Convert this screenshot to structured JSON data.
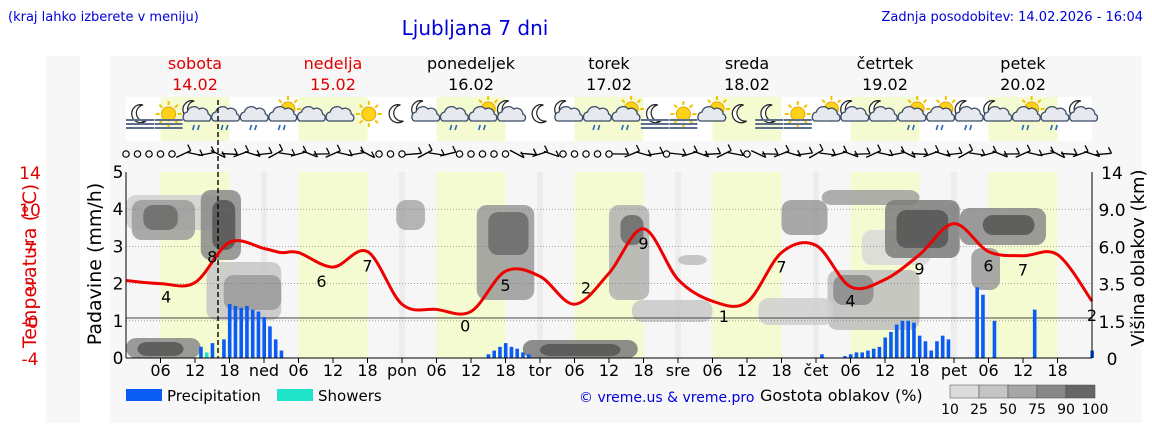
{
  "header": {
    "left_note": "(kraj lahko izberete v meniju)",
    "title": "Ljubljana 7 dni",
    "updated": "Zadnja posodobitev: 14.02.2026 - 16:04"
  },
  "days": [
    {
      "name": "sobota",
      "date": "14.02",
      "color": "#e00000"
    },
    {
      "name": "nedelja",
      "date": "15.02",
      "color": "#e00000"
    },
    {
      "name": "ponedeljek",
      "date": "16.02",
      "color": "#000000"
    },
    {
      "name": "torek",
      "date": "17.02",
      "color": "#000000"
    },
    {
      "name": "sreda",
      "date": "18.02",
      "color": "#000000"
    },
    {
      "name": "četrtek",
      "date": "19.02",
      "color": "#000000"
    },
    {
      "name": "petek",
      "date": "20.02",
      "color": "#000000"
    }
  ],
  "icons": [
    "moon-fog",
    "sun-fog",
    "cloud-moon-rain",
    "cloud-rain",
    "cloud-rain",
    "cloud-sun-rain",
    "cloud",
    "cloud",
    "sun",
    "moon",
    "cloud-moon",
    "cloud-rain",
    "cloud-sun-rain",
    "cloud-moon",
    "moon",
    "cloud-moon",
    "cloud-rain",
    "cloud-sun-rain",
    "moon-fog",
    "sun-fog",
    "cloud-sun",
    "moon",
    "moon-fog",
    "sun-fog",
    "cloud-sun",
    "cloud-moon",
    "cloud-moon",
    "cloud-sun-rain",
    "cloud-sun-rain",
    "cloud-moon-rain",
    "cloud-moon",
    "cloud-sun-rain",
    "cloud-rain",
    "moon-cloud"
  ],
  "wind_symbols": [
    "calm",
    "calm",
    "calm",
    "calm",
    "calm",
    "barb",
    "barb",
    "barb",
    "barb",
    "barb",
    "barb",
    "barb",
    "barb",
    "barb",
    "barb",
    "barb",
    "barb",
    "barb",
    "barb",
    "barb",
    "barb",
    "barb",
    "calm",
    "calm",
    "calm",
    "barb",
    "barb",
    "barb",
    "barb",
    "calm",
    "calm",
    "calm",
    "calm",
    "calm",
    "barb",
    "barb",
    "barb",
    "barb",
    "calm",
    "calm",
    "calm",
    "calm",
    "calm",
    "barb",
    "barb",
    "barb",
    "barb",
    "calm",
    "barb",
    "barb",
    "barb",
    "barb",
    "barb",
    "barb",
    "calm",
    "barb",
    "barb",
    "barb",
    "barb",
    "barb",
    "barb",
    "barb",
    "barb",
    "barb",
    "barb",
    "barb",
    "barb",
    "barb",
    "barb",
    "barb",
    "barb",
    "barb",
    "barb",
    "barb",
    "barb",
    "barb",
    "barb",
    "barb",
    "barb",
    "barb",
    "barb",
    "barb",
    "barb",
    "barb",
    "barb",
    "barb"
  ],
  "chart_data": {
    "type": "line",
    "x_ticks": [
      "06",
      "12",
      "18",
      "ned",
      "06",
      "12",
      "18",
      "pon",
      "06",
      "12",
      "18",
      "tor",
      "06",
      "12",
      "18",
      "sre",
      "06",
      "12",
      "18",
      "čet",
      "06",
      "12",
      "18",
      "pet",
      "06",
      "12",
      "18"
    ],
    "temperature": {
      "axis_label": "Temperatura (°C)",
      "ticks": [
        "14",
        "10",
        "7",
        "3",
        "-0",
        "-4"
      ],
      "ylim": [
        -4,
        14
      ],
      "hours": [
        0,
        6,
        12,
        18,
        24,
        27,
        30,
        36,
        42,
        48,
        54,
        60,
        66,
        72,
        78,
        84,
        90,
        96,
        102,
        108,
        114,
        120,
        126,
        132,
        138,
        144,
        150,
        156,
        162,
        168
      ],
      "values": [
        3.5,
        3.2,
        3.3,
        7.2,
        6.6,
        6.2,
        6.2,
        4.8,
        6.3,
        1.2,
        0.7,
        0.5,
        4.4,
        3.9,
        1.2,
        4.2,
        8.5,
        3.6,
        1.5,
        1.4,
        6.2,
        6.9,
        2.9,
        3.6,
        6.0,
        9.0,
        6.3,
        5.9,
        6.0,
        1.5
      ],
      "labels": [
        {
          "hour": 7,
          "text": "4"
        },
        {
          "hour": 15,
          "text": "8"
        },
        {
          "hour": 34,
          "text": "6"
        },
        {
          "hour": 42,
          "text": "7"
        },
        {
          "hour": 59,
          "text": "0"
        },
        {
          "hour": 66,
          "text": "5"
        },
        {
          "hour": 80,
          "text": "2"
        },
        {
          "hour": 90,
          "text": "9"
        },
        {
          "hour": 104,
          "text": "1"
        },
        {
          "hour": 114,
          "text": "7"
        },
        {
          "hour": 126,
          "text": "4"
        },
        {
          "hour": 138,
          "text": "9"
        },
        {
          "hour": 150,
          "text": "6"
        },
        {
          "hour": 156,
          "text": "7"
        },
        {
          "hour": 168,
          "text": "2"
        }
      ]
    },
    "precipitation": {
      "axis_label": "Padavine (mm/h)",
      "ticks": [
        "5",
        "4",
        "3",
        "2",
        "1",
        "0"
      ],
      "ylim": [
        0,
        5
      ],
      "bars": [
        {
          "hour": 13,
          "value": 0.3,
          "kind": "precipitation"
        },
        {
          "hour": 14,
          "value": 0.15,
          "kind": "showers"
        },
        {
          "hour": 15,
          "value": 0.4,
          "kind": "precipitation"
        },
        {
          "hour": 17,
          "value": 0.5,
          "kind": "precipitation"
        },
        {
          "hour": 18,
          "value": 1.45,
          "kind": "precipitation"
        },
        {
          "hour": 19,
          "value": 1.4,
          "kind": "precipitation"
        },
        {
          "hour": 20,
          "value": 1.35,
          "kind": "precipitation"
        },
        {
          "hour": 21,
          "value": 1.4,
          "kind": "precipitation"
        },
        {
          "hour": 22,
          "value": 1.3,
          "kind": "precipitation"
        },
        {
          "hour": 23,
          "value": 1.25,
          "kind": "precipitation"
        },
        {
          "hour": 24,
          "value": 1.1,
          "kind": "precipitation"
        },
        {
          "hour": 25,
          "value": 0.85,
          "kind": "precipitation"
        },
        {
          "hour": 26,
          "value": 0.5,
          "kind": "precipitation"
        },
        {
          "hour": 27,
          "value": 0.2,
          "kind": "precipitation"
        },
        {
          "hour": 63,
          "value": 0.1,
          "kind": "precipitation"
        },
        {
          "hour": 64,
          "value": 0.2,
          "kind": "precipitation"
        },
        {
          "hour": 65,
          "value": 0.3,
          "kind": "precipitation"
        },
        {
          "hour": 66,
          "value": 0.4,
          "kind": "precipitation"
        },
        {
          "hour": 67,
          "value": 0.3,
          "kind": "precipitation"
        },
        {
          "hour": 68,
          "value": 0.25,
          "kind": "precipitation"
        },
        {
          "hour": 69,
          "value": 0.15,
          "kind": "precipitation"
        },
        {
          "hour": 70,
          "value": 0.1,
          "kind": "precipitation"
        },
        {
          "hour": 121,
          "value": 0.1,
          "kind": "precipitation"
        },
        {
          "hour": 125,
          "value": 0.05,
          "kind": "precipitation"
        },
        {
          "hour": 126,
          "value": 0.1,
          "kind": "precipitation"
        },
        {
          "hour": 127,
          "value": 0.15,
          "kind": "precipitation"
        },
        {
          "hour": 128,
          "value": 0.15,
          "kind": "precipitation"
        },
        {
          "hour": 129,
          "value": 0.2,
          "kind": "precipitation"
        },
        {
          "hour": 130,
          "value": 0.25,
          "kind": "precipitation"
        },
        {
          "hour": 131,
          "value": 0.3,
          "kind": "precipitation"
        },
        {
          "hour": 132,
          "value": 0.55,
          "kind": "precipitation"
        },
        {
          "hour": 133,
          "value": 0.7,
          "kind": "precipitation"
        },
        {
          "hour": 134,
          "value": 0.9,
          "kind": "precipitation"
        },
        {
          "hour": 135,
          "value": 1.0,
          "kind": "precipitation"
        },
        {
          "hour": 136,
          "value": 1.0,
          "kind": "precipitation"
        },
        {
          "hour": 137,
          "value": 0.95,
          "kind": "precipitation"
        },
        {
          "hour": 138,
          "value": 0.6,
          "kind": "precipitation"
        },
        {
          "hour": 139,
          "value": 0.45,
          "kind": "precipitation"
        },
        {
          "hour": 140,
          "value": 0.2,
          "kind": "precipitation"
        },
        {
          "hour": 141,
          "value": 0.45,
          "kind": "precipitation"
        },
        {
          "hour": 142,
          "value": 0.6,
          "kind": "precipitation"
        },
        {
          "hour": 143,
          "value": 0.5,
          "kind": "precipitation"
        },
        {
          "hour": 148,
          "value": 1.9,
          "kind": "precipitation"
        },
        {
          "hour": 149,
          "value": 1.7,
          "kind": "precipitation"
        },
        {
          "hour": 151,
          "value": 1.0,
          "kind": "precipitation"
        },
        {
          "hour": 158,
          "value": 1.3,
          "kind": "precipitation"
        },
        {
          "hour": 168,
          "value": 0.2,
          "kind": "precipitation"
        }
      ]
    },
    "cloud_height": {
      "axis_label": "Višina oblakov (km)",
      "ticks": [
        "14",
        "9.0",
        "6.0",
        "3.5",
        "1.5",
        "0"
      ]
    },
    "cloud_cover_legend": {
      "label": "Gostota oblakov (%)",
      "levels": [
        "10",
        "25",
        "50",
        "75",
        "90",
        "100"
      ]
    },
    "legend": [
      {
        "label": "Precipitation",
        "color": "#0a5cf5"
      },
      {
        "label": "Showers",
        "color": "#1ee3c8"
      }
    ],
    "credit": "© vreme.us & vreme.pro",
    "now_hour": 16
  }
}
